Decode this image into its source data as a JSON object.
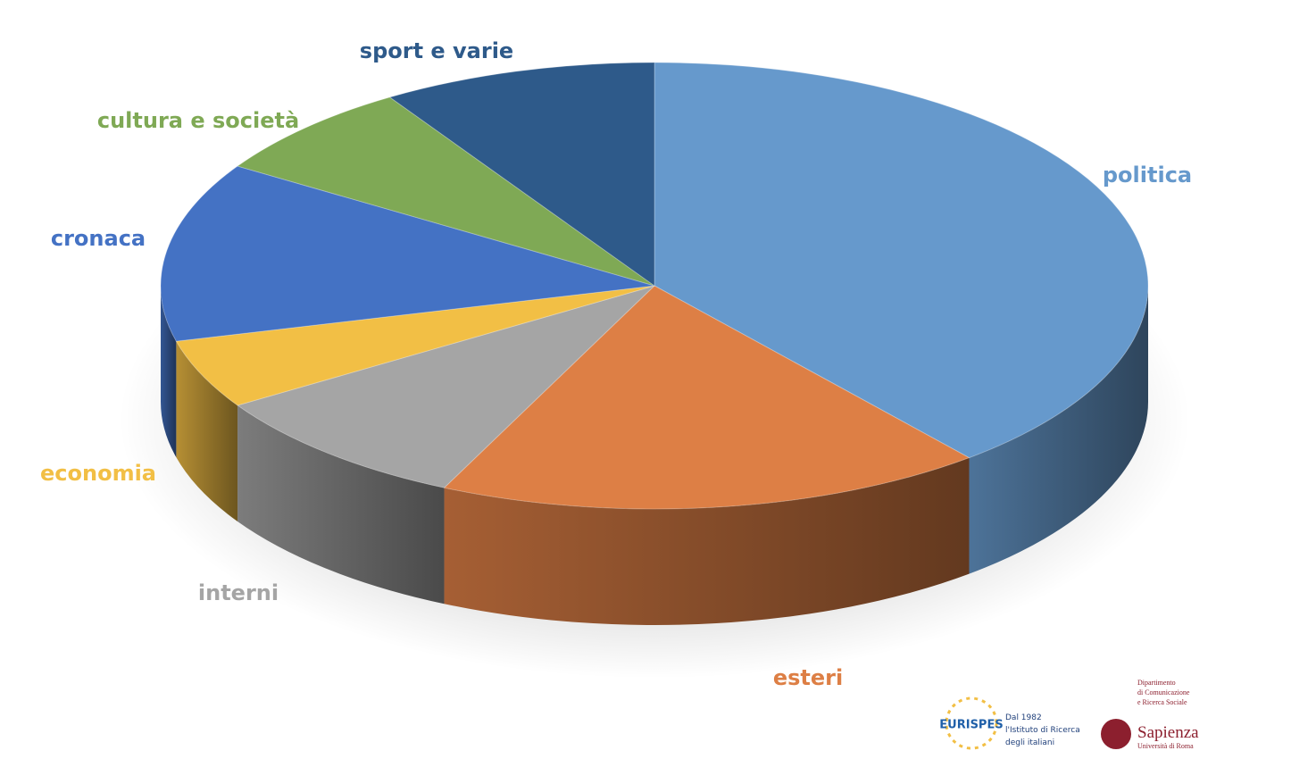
{
  "chart_data": {
    "type": "pie",
    "categories": [
      "politica",
      "esteri",
      "interni",
      "economia",
      "cronaca",
      "cultura e società",
      "sport e varie"
    ],
    "values": [
      39,
      18,
      9,
      5,
      13,
      7,
      9
    ],
    "colors": [
      "#6699cc",
      "#dd7f45",
      "#a5a5a5",
      "#f2bf45",
      "#4472c4",
      "#7fa955",
      "#2e5a8a"
    ]
  },
  "logos": {
    "eurispes": {
      "name": "EURISPES",
      "lines": [
        "Dal 1982",
        "l'Istituto di Ricerca",
        "degli italiani"
      ]
    },
    "sapienza": {
      "department": [
        "Dipartimento",
        "di Comunicazione",
        "e Ricerca Sociale"
      ],
      "name": "Sapienza",
      "university": "Università di Roma"
    }
  }
}
